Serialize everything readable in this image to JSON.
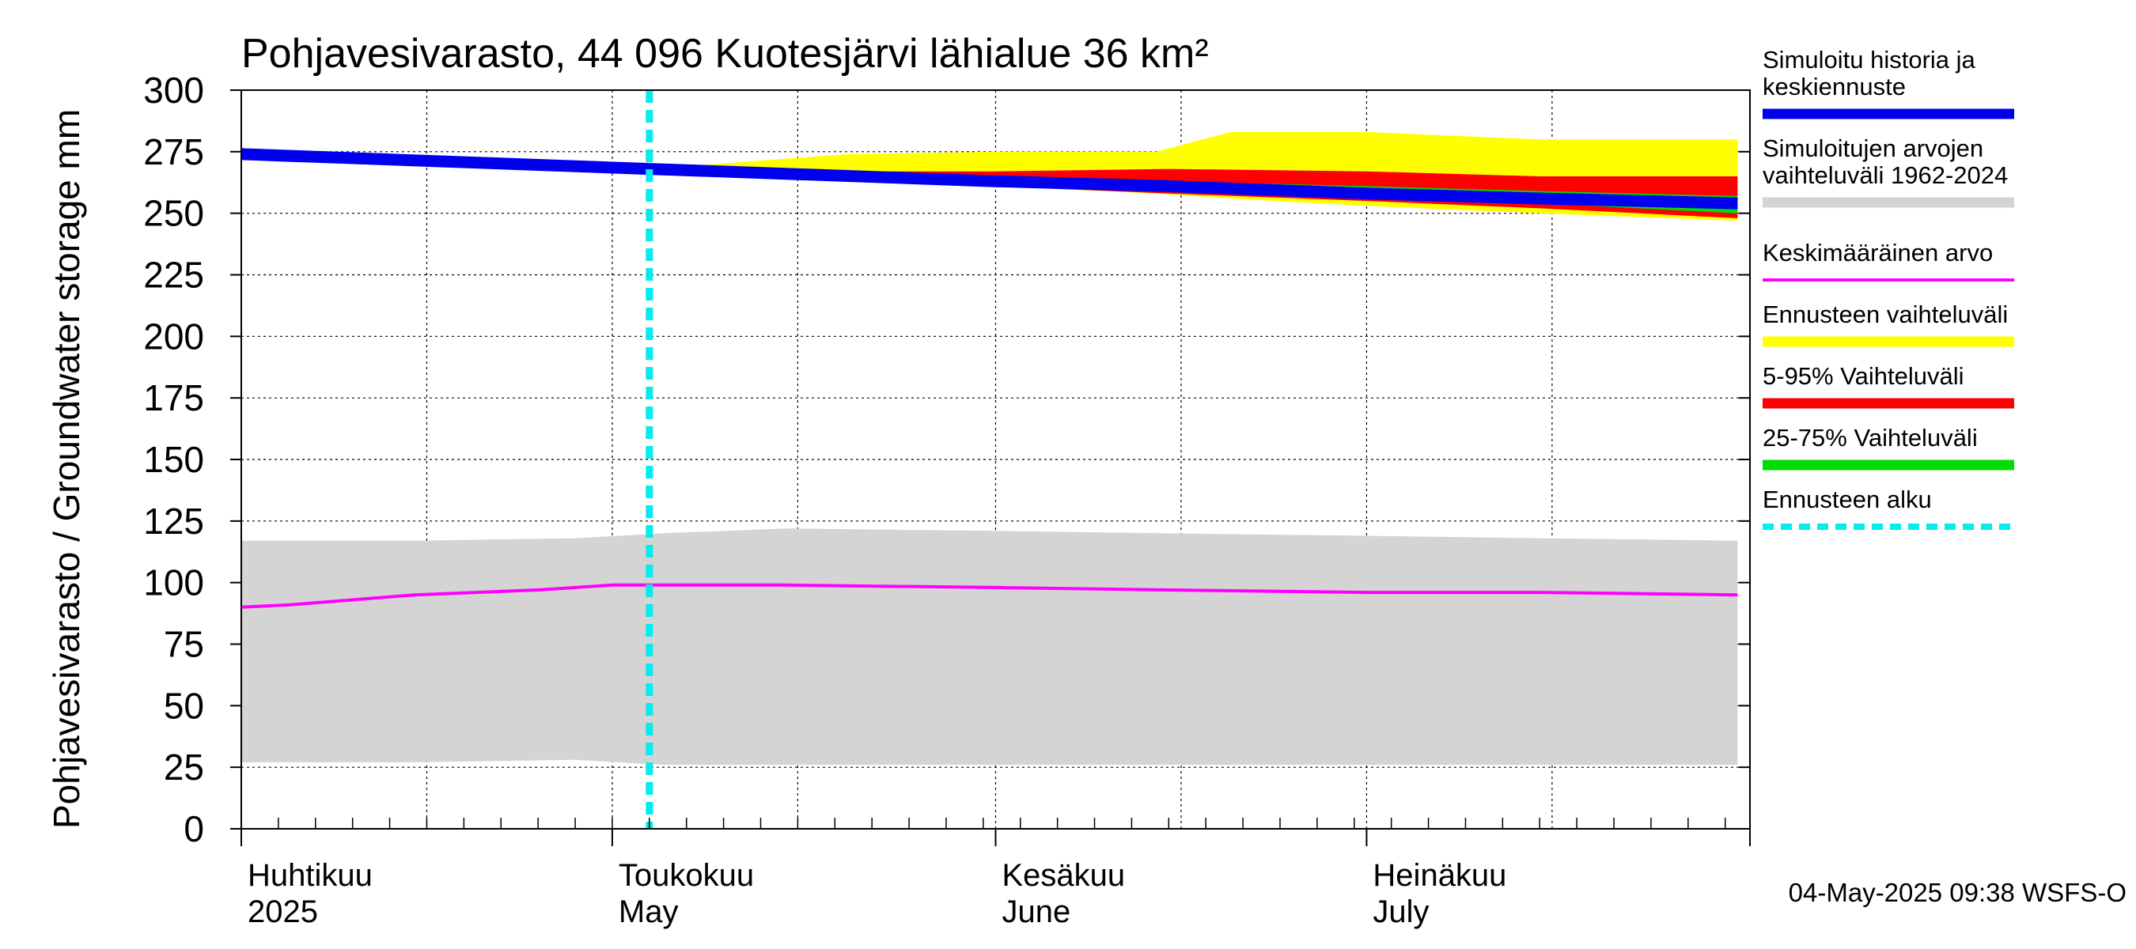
{
  "chart_data": {
    "type": "area",
    "title": "Pohjavesivarasto, 44 096 Kuotesjärvi lähialue 36 km²",
    "ylabel": "Pohjavesivarasto / Groundwater storage   mm",
    "ylim": [
      0,
      300
    ],
    "y_ticks": [
      "0",
      "25",
      "50",
      "75",
      "100",
      "125",
      "150",
      "175",
      "200",
      "225",
      "250",
      "275",
      "300"
    ],
    "x_range": [
      "2025-04-01",
      "2025-07-31"
    ],
    "month_labels": [
      {
        "date": "2025-04-01",
        "fi": "Huhtikuu",
        "en": "2025"
      },
      {
        "date": "2025-05-01",
        "fi": "Toukokuu",
        "en": "May"
      },
      {
        "date": "2025-06-01",
        "fi": "Kesäkuu",
        "en": "June"
      },
      {
        "date": "2025-07-01",
        "fi": "Heinäkuu",
        "en": "July"
      }
    ],
    "forecast_start": "2025-05-04",
    "grid": true,
    "legend_position": "right",
    "timestamp": "04-May-2025 09:38 WSFS-O",
    "series": [
      {
        "name": "Simuloitujen arvojen vaihteluväli 1962-2024",
        "kind": "band",
        "color": "#d4d4d4",
        "x": [
          "2025-04-01",
          "2025-04-15",
          "2025-04-28",
          "2025-05-05",
          "2025-05-15",
          "2025-06-01",
          "2025-06-15",
          "2025-07-01",
          "2025-07-15",
          "2025-07-31"
        ],
        "upper": [
          117,
          117,
          118,
          120,
          122,
          121,
          120,
          119,
          118,
          117
        ],
        "lower": [
          27,
          27,
          28,
          26,
          26,
          26,
          26,
          26,
          26,
          26
        ]
      },
      {
        "name": "Ennusteen vaihteluväli",
        "kind": "band",
        "color": "#ffff00",
        "x": [
          "2025-05-04",
          "2025-05-20",
          "2025-06-01",
          "2025-06-14",
          "2025-06-20",
          "2025-07-01",
          "2025-07-15",
          "2025-07-31"
        ],
        "upper": [
          268,
          274,
          275,
          275,
          283,
          283,
          280,
          280
        ],
        "lower": [
          268,
          264,
          261,
          258,
          256,
          253,
          250,
          247
        ]
      },
      {
        "name": "5-95% Vaihteluväli",
        "kind": "band",
        "color": "#ff0000",
        "x": [
          "2025-05-04",
          "2025-05-20",
          "2025-06-01",
          "2025-06-15",
          "2025-07-01",
          "2025-07-15",
          "2025-07-31"
        ],
        "upper": [
          268,
          267,
          267,
          268,
          267,
          265,
          265
        ],
        "lower": [
          268,
          264,
          261,
          258,
          255,
          252,
          248
        ]
      },
      {
        "name": "25-75% Vaihteluväli",
        "kind": "band",
        "color": "#00dd00",
        "x": [
          "2025-05-04",
          "2025-05-20",
          "2025-06-01",
          "2025-06-15",
          "2025-07-01",
          "2025-07-15",
          "2025-07-31"
        ],
        "upper": [
          268,
          266,
          264,
          263,
          261,
          259,
          257
        ],
        "lower": [
          268,
          265,
          262,
          260,
          257,
          254,
          250
        ]
      },
      {
        "name": "Keskimääräinen arvo",
        "kind": "line",
        "color": "#ff00ff",
        "x": [
          "2025-04-01",
          "2025-04-05",
          "2025-04-10",
          "2025-04-15",
          "2025-04-20",
          "2025-04-25",
          "2025-05-01",
          "2025-05-15",
          "2025-06-01",
          "2025-06-15",
          "2025-07-01",
          "2025-07-15",
          "2025-07-31"
        ],
        "values": [
          90,
          91,
          93,
          95,
          96,
          97,
          99,
          99,
          98,
          97,
          96,
          96,
          95
        ]
      },
      {
        "name": "Simuloitu historia ja keskiennuste",
        "kind": "line",
        "color": "#0000ee",
        "x": [
          "2025-04-01",
          "2025-05-04",
          "2025-06-01",
          "2025-06-15",
          "2025-07-01",
          "2025-07-15",
          "2025-07-31"
        ],
        "values": [
          274,
          268,
          263,
          261,
          258,
          256,
          254
        ]
      }
    ]
  },
  "legend": [
    {
      "label": "Simuloitu historia ja keskiennuste",
      "lines": [
        "Simuloitu historia ja",
        "keskiennuste"
      ],
      "color": "#0000ee",
      "style": "thick"
    },
    {
      "label": "Simuloitujen arvojen vaihteluväli 1962-2024",
      "lines": [
        "Simuloitujen arvojen",
        "vaihteluväli 1962-2024"
      ],
      "color": "#d4d4d4",
      "style": "thick"
    },
    {
      "label": "Keskimääräinen arvo",
      "lines": [
        "Keskimääräinen arvo"
      ],
      "color": "#ff00ff",
      "style": "thin"
    },
    {
      "label": "Ennusteen vaihteluväli",
      "lines": [
        "Ennusteen vaihteluväli"
      ],
      "color": "#ffff00",
      "style": "thick"
    },
    {
      "label": "5-95% Vaihteluväli",
      "lines": [
        "5-95% Vaihteluväli"
      ],
      "color": "#ff0000",
      "style": "thick"
    },
    {
      "label": "25-75% Vaihteluväli",
      "lines": [
        "25-75% Vaihteluväli"
      ],
      "color": "#00dd00",
      "style": "thick"
    },
    {
      "label": "Ennusteen alku",
      "lines": [
        "Ennusteen alku"
      ],
      "color": "#00eeee",
      "style": "dashed"
    }
  ]
}
